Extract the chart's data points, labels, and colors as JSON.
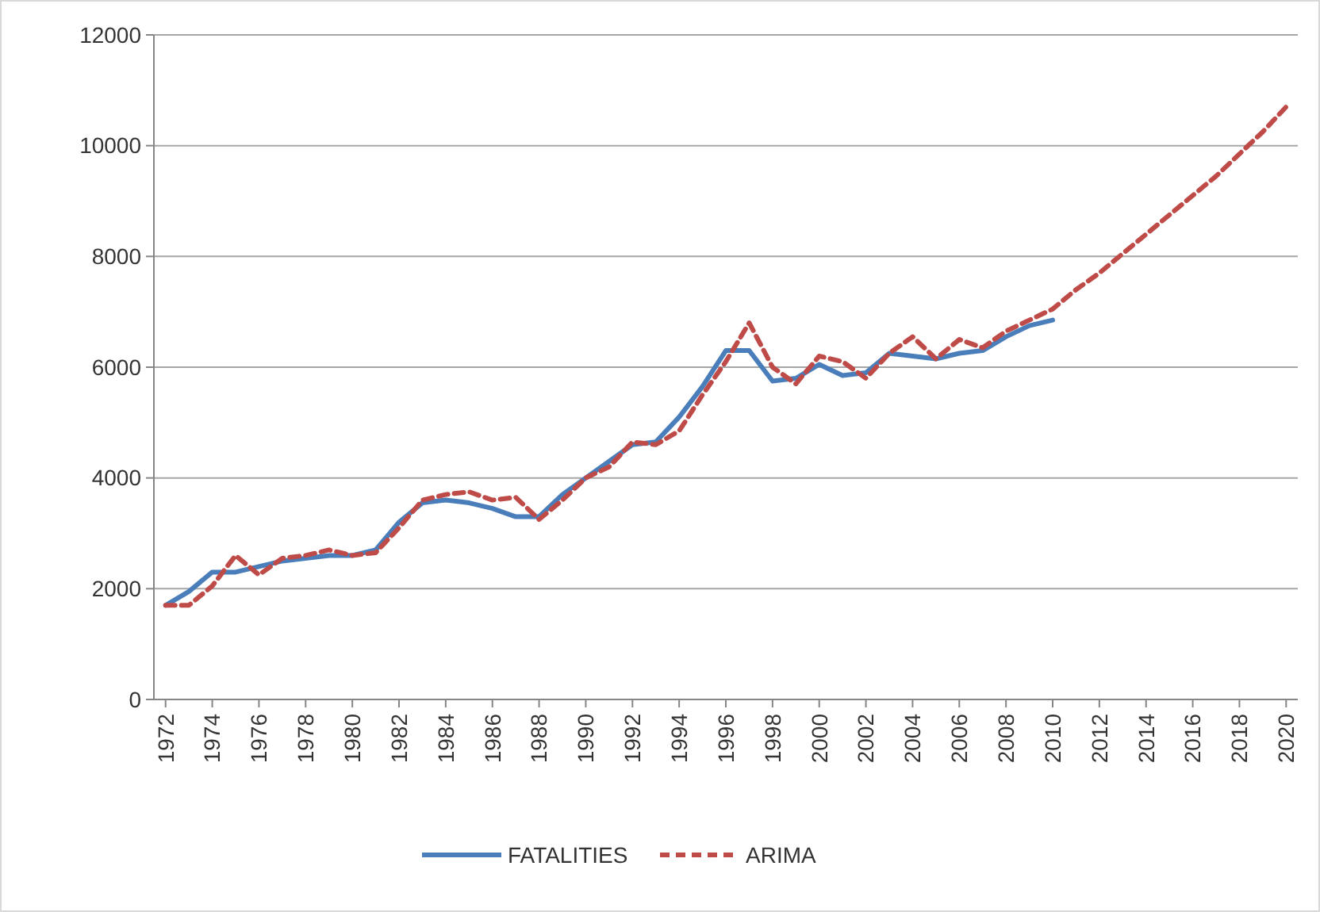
{
  "chart_data": {
    "type": "line",
    "xlim": [
      1971.5,
      2020.5
    ],
    "xticks": [
      1972,
      1974,
      1976,
      1978,
      1980,
      1982,
      1984,
      1986,
      1988,
      1990,
      1992,
      1994,
      1996,
      1998,
      2000,
      2002,
      2004,
      2006,
      2008,
      2010,
      2012,
      2014,
      2016,
      2018,
      2020
    ],
    "ylim": [
      0,
      12000
    ],
    "yticks": [
      0,
      2000,
      4000,
      6000,
      8000,
      10000,
      12000
    ],
    "grid": "y",
    "legend": "bottom",
    "series": [
      {
        "name": "FATALITIES",
        "color": "#4a7ebb",
        "line_style": "solid",
        "x": [
          1972,
          1973,
          1974,
          1975,
          1976,
          1977,
          1978,
          1979,
          1980,
          1981,
          1982,
          1983,
          1984,
          1985,
          1986,
          1987,
          1988,
          1989,
          1990,
          1991,
          1992,
          1993,
          1994,
          1995,
          1996,
          1997,
          1998,
          1999,
          2000,
          2001,
          2002,
          2003,
          2004,
          2005,
          2006,
          2007,
          2008,
          2009,
          2010
        ],
        "values": [
          1700,
          1950,
          2300,
          2300,
          2400,
          2500,
          2550,
          2600,
          2600,
          2700,
          3200,
          3550,
          3600,
          3550,
          3450,
          3300,
          3300,
          3700,
          4000,
          4300,
          4600,
          4650,
          5100,
          5650,
          6300,
          6300,
          5750,
          5800,
          6050,
          5850,
          5900,
          6250,
          6200,
          6150,
          6250,
          6300,
          6550,
          6750,
          6850
        ]
      },
      {
        "name": "ARIMA",
        "color": "#be4b48",
        "line_style": "dashed",
        "x": [
          1972,
          1973,
          1974,
          1975,
          1976,
          1977,
          1978,
          1979,
          1980,
          1981,
          1982,
          1983,
          1984,
          1985,
          1986,
          1987,
          1988,
          1989,
          1990,
          1991,
          1992,
          1993,
          1994,
          1995,
          1996,
          1997,
          1998,
          1999,
          2000,
          2001,
          2002,
          2003,
          2004,
          2005,
          2006,
          2007,
          2008,
          2009,
          2010,
          2011,
          2012,
          2013,
          2014,
          2015,
          2016,
          2017,
          2018,
          2019,
          2020
        ],
        "values": [
          1700,
          1700,
          2050,
          2600,
          2250,
          2550,
          2600,
          2700,
          2600,
          2650,
          3100,
          3600,
          3700,
          3750,
          3600,
          3650,
          3250,
          3600,
          4000,
          4200,
          4650,
          4600,
          4850,
          5500,
          6100,
          6800,
          6000,
          5700,
          6200,
          6100,
          5800,
          6250,
          6550,
          6150,
          6500,
          6350,
          6650,
          6850,
          7050,
          7400,
          7700,
          8050,
          8400,
          8750,
          9100,
          9450,
          9850,
          10250,
          10700
        ]
      }
    ]
  }
}
